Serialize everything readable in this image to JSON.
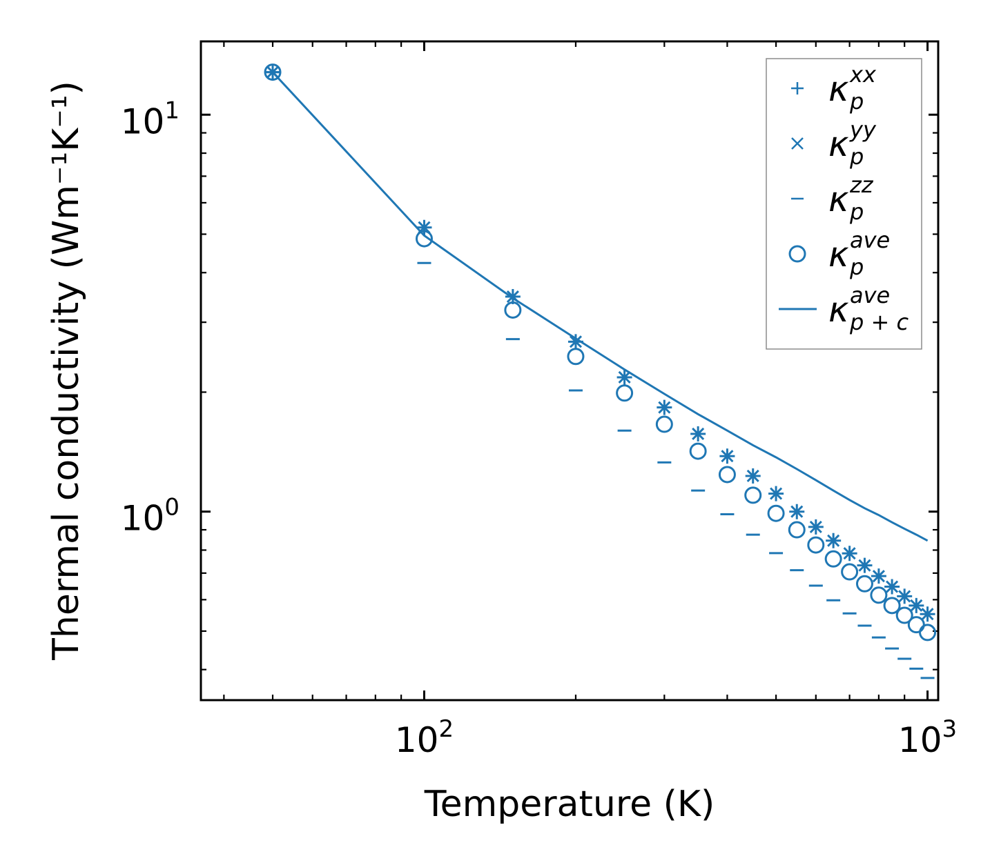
{
  "chart_data": {
    "type": "scatter",
    "scale": {
      "x": "log",
      "y": "log"
    },
    "xlabel": "Temperature (K)",
    "ylabel": "Thermal conductivity (Wm⁻¹K⁻¹)",
    "xlim": [
      36,
      1050
    ],
    "ylim": [
      0.335,
      15.3
    ],
    "x_ticks": [
      {
        "value": 100,
        "base": "10",
        "exp": "2"
      },
      {
        "value": 1000,
        "base": "10",
        "exp": "3"
      }
    ],
    "y_ticks": [
      {
        "value": 1,
        "base": "10",
        "exp": "0"
      },
      {
        "value": 10,
        "base": "10",
        "exp": "1"
      }
    ],
    "color": "#1f77b4",
    "x": [
      50,
      100,
      150,
      200,
      250,
      300,
      350,
      400,
      450,
      500,
      550,
      600,
      650,
      700,
      750,
      800,
      850,
      900,
      950,
      1000
    ],
    "series": [
      {
        "name": "xx",
        "marker": "plus",
        "label_main": "κ",
        "label_sub": "p",
        "label_sup": "xx",
        "values": [
          12.8,
          5.2,
          3.48,
          2.68,
          2.18,
          1.83,
          1.57,
          1.38,
          1.23,
          1.11,
          1.0,
          0.915,
          0.845,
          0.785,
          0.732,
          0.688,
          0.647,
          0.612,
          0.58,
          0.552
        ]
      },
      {
        "name": "yy",
        "marker": "x",
        "label_main": "κ",
        "label_sub": "p",
        "label_sup": "yy",
        "values": [
          12.8,
          5.2,
          3.48,
          2.68,
          2.18,
          1.83,
          1.57,
          1.38,
          1.23,
          1.11,
          1.0,
          0.915,
          0.845,
          0.785,
          0.732,
          0.688,
          0.647,
          0.612,
          0.58,
          0.552
        ]
      },
      {
        "name": "zz",
        "marker": "dash",
        "label_main": "κ",
        "label_sub": "p",
        "label_sup": "zz",
        "values": [
          12.8,
          4.23,
          2.72,
          2.02,
          1.6,
          1.33,
          1.13,
          0.985,
          0.875,
          0.786,
          0.712,
          0.651,
          0.598,
          0.554,
          0.516,
          0.482,
          0.452,
          0.426,
          0.402,
          0.381
        ]
      },
      {
        "name": "ave",
        "marker": "circle",
        "label_main": "κ",
        "label_sub": "p",
        "label_sup": "ave",
        "values": [
          12.8,
          4.87,
          3.22,
          2.46,
          1.99,
          1.66,
          1.42,
          1.24,
          1.1,
          0.99,
          0.9,
          0.824,
          0.76,
          0.705,
          0.658,
          0.616,
          0.58,
          0.548,
          0.519,
          0.496
        ]
      },
      {
        "name": "ave_pc",
        "marker": "line",
        "label_main": "κ",
        "label_sub": "p + c",
        "label_sup": "ave",
        "values": [
          12.8,
          4.96,
          3.45,
          2.73,
          2.28,
          1.98,
          1.76,
          1.6,
          1.47,
          1.37,
          1.28,
          1.2,
          1.13,
          1.07,
          1.02,
          0.98,
          0.94,
          0.905,
          0.875,
          0.845
        ]
      }
    ],
    "legend": {
      "position": "top-right"
    }
  }
}
